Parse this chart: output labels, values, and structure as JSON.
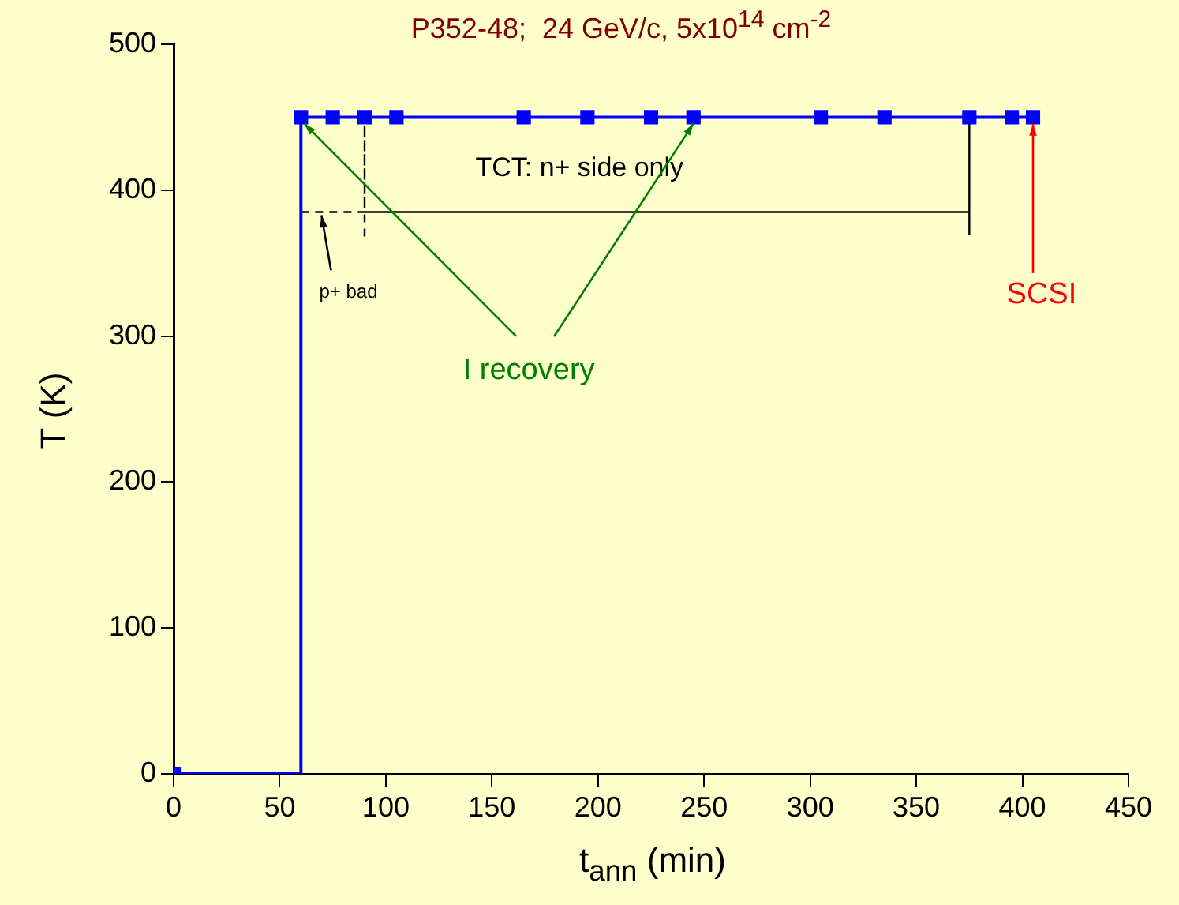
{
  "chart_data": {
    "type": "step",
    "title": "P352-48;  24 GeV/c, 5x10$^{14}$ cm$^{-2}$",
    "xlabel": "t$_{ann}$ (min)",
    "ylabel": "T (K)",
    "x": [
      0,
      60,
      75,
      90,
      105,
      165,
      195,
      225,
      245,
      305,
      335,
      375,
      395,
      405
    ],
    "series": [
      {
        "color": "#0000ff",
        "values": [
          0,
          450,
          450,
          450,
          450,
          450,
          450,
          450,
          450,
          450,
          450,
          450,
          450,
          450
        ]
      },
      {
        "type": "line",
        "marker": "none",
        "color": "#000000",
        "x": [
          90,
          375,
          375,
          375
        ],
        "values": [
          385,
          385,
          450,
          370
        ]
      },
      {
        "type": "line",
        "marker": "none",
        "line_style": "dashed",
        "color": "#000000",
        "x": [
          60,
          90,
          90,
          90
        ],
        "values": [
          385,
          385,
          450,
          367
        ]
      }
    ],
    "xlim": [
      0,
      450
    ],
    "xticks": [
      0,
      50,
      100,
      150,
      200,
      250,
      300,
      350,
      400,
      450
    ],
    "ylim": [
      0,
      500
    ],
    "yticks": [
      0,
      100,
      200,
      300,
      400,
      500
    ],
    "grid": false,
    "legend": false,
    "marker": "square",
    "line_style": "solid",
    "annotations": [
      "p+ bad",
      "TCT: n+ side only",
      {
        "text": "I recovery",
        "x": 245,
        "y": 450
      },
      {
        "text": "SCSI",
        "x": 405,
        "y": 450
      }
    ]
  }
}
